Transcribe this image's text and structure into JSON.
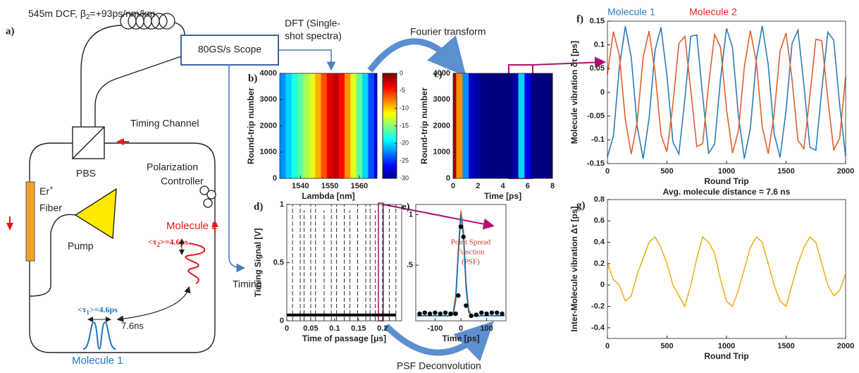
{
  "diagram": {
    "panel": "a)",
    "fiber_label": [
      "545m DCF, β",
      "2",
      "=+93ps/nm/km"
    ],
    "scope": "80GS/s Scope",
    "dft": [
      "DFT (Single-",
      "shot spectra)"
    ],
    "fourier": "Fourier transform",
    "timing_channel": "Timing Channel",
    "pbs": "PBS",
    "controller": [
      "Polarization",
      "Controller"
    ],
    "gain_fiber": [
      "Er",
      "+",
      "Fiber"
    ],
    "pump": "Pump",
    "molecule2": "Molecule 2",
    "tau2": [
      "<τ",
      "2",
      ">=4.6ps"
    ],
    "tau1": [
      "<τ",
      "1",
      ">=4.6ps"
    ],
    "distance": "7.6ns",
    "molecule1": "Molecule 1",
    "timing": "Timing",
    "psf_deconvolution": "PSF Deconvolution"
  },
  "chart_data": [
    {
      "type": "heatmap",
      "panel": "b)",
      "x": [
        1534,
        1536,
        1538,
        1540,
        1542,
        1544,
        1546,
        1548,
        1550,
        1552,
        1554,
        1556,
        1558,
        1560,
        1562,
        1564,
        1566
      ],
      "values": [
        -22,
        -20,
        -18,
        -16,
        -14,
        -12,
        -9,
        -6,
        -3,
        -2,
        -4,
        -8,
        -12,
        -16,
        -20,
        -24,
        -27
      ],
      "xlim": [
        1533,
        1566
      ],
      "xticks": [
        1540,
        1550,
        1560
      ],
      "ylim": [
        0,
        4000
      ],
      "yticks": [
        0,
        1000,
        2000,
        3000,
        4000
      ],
      "xlabel": "Lambda [nm]",
      "ylabel": "Round-trip number",
      "clim": [
        -30,
        0
      ],
      "cticks": [
        0,
        -5,
        -10,
        -15,
        -20,
        -25,
        -30
      ],
      "colormap": "jet",
      "colorbar": true
    },
    {
      "type": "heatmap",
      "panel": "c)",
      "x": [
        0,
        0.5,
        1,
        1.5,
        2,
        2.5,
        3,
        3.5,
        4,
        4.5,
        5,
        5.5,
        6,
        6.5,
        7,
        7.5,
        8
      ],
      "values": [
        -1,
        -8,
        -22,
        -28,
        -29,
        -30,
        -30,
        -30,
        -30,
        -30,
        -29,
        -20,
        -27,
        -30,
        -30,
        -30,
        -30
      ],
      "xlim": [
        0,
        8
      ],
      "xticks": [
        0,
        2,
        4,
        6,
        8
      ],
      "ylim": [
        0,
        4000
      ],
      "yticks": [
        0,
        1000,
        2000,
        3000,
        4000
      ],
      "xlabel": "Time [ps]",
      "ylabel": "Round-trip number",
      "clim": [
        -30,
        0
      ],
      "colormap": "jet",
      "colorbar": false
    },
    {
      "type": "spikes",
      "panel": "d)",
      "x": [
        0.012,
        0.028,
        0.036,
        0.05,
        0.06,
        0.078,
        0.093,
        0.104,
        0.12,
        0.132,
        0.148,
        0.165,
        0.174,
        0.185,
        0.2,
        0.214,
        0.228
      ],
      "values": [
        1,
        1,
        0.95,
        1,
        1,
        0.95,
        1,
        1,
        1,
        0.95,
        1,
        1,
        1,
        0.95,
        1,
        1,
        1
      ],
      "baseline": 0.05,
      "color": "#000000",
      "xlim": [
        0,
        0.24
      ],
      "xticks": [
        0,
        0.05,
        0.1,
        0.15,
        0.2
      ],
      "ylim": [
        0,
        1
      ],
      "yticks": [
        0,
        0.5,
        1
      ],
      "xlabel": "Time of passage [μs]",
      "ylabel": "Timing Signal [V]"
    },
    {
      "type": "line",
      "panel": "e)",
      "series": [
        {
          "color": "#e8621e",
          "style": "line",
          "x": [
            -170,
            -60,
            -50,
            -40,
            -30,
            -20,
            -10,
            0,
            10,
            20,
            30,
            40,
            50,
            60,
            170
          ],
          "values": [
            0,
            0,
            0,
            0,
            0.03,
            0.2,
            0.64,
            1.04,
            0.84,
            0.34,
            0.07,
            0.01,
            0,
            0,
            0
          ]
        },
        {
          "color": "#0072bd",
          "style": "line",
          "x": [
            -170,
            -60,
            -50,
            -40,
            -30,
            -20,
            -10,
            0,
            10,
            20,
            30,
            40,
            50,
            60,
            170
          ],
          "values": [
            0,
            0,
            0,
            0,
            0.01,
            0.15,
            0.6,
            1,
            0.8,
            0.28,
            0.04,
            0,
            0,
            0,
            0
          ]
        },
        {
          "color": "#000000",
          "style": "dots",
          "x": [
            -160,
            -140,
            -120,
            -100,
            -80,
            -60,
            -40,
            -20,
            -10,
            0,
            10,
            20,
            40,
            60,
            80,
            100,
            120,
            140,
            160
          ],
          "values": [
            0.02,
            0.03,
            0.02,
            0.03,
            0.02,
            0.03,
            0.02,
            0.02,
            0.2,
            0.88,
            0.78,
            0.1,
            0,
            0.01,
            0.03,
            0.02,
            0.03,
            0.03,
            0.02
          ]
        }
      ],
      "xlim": [
        -175,
        175
      ],
      "xticks": [
        -100,
        0,
        100
      ],
      "ylim": [
        -0.05,
        1.1
      ],
      "yticks": [
        {
          "value": 0.5,
          "label": ".5"
        },
        1
      ],
      "xlabel": "Time [ps]",
      "annotation": [
        "Point Spread",
        "Function",
        "(PSF)"
      ],
      "annotation_color": "#c0392b"
    },
    {
      "type": "line",
      "panel": "f)",
      "x": [
        0,
        50,
        100,
        150,
        200,
        250,
        300,
        350,
        400,
        450,
        500,
        550,
        600,
        650,
        700,
        750,
        800,
        850,
        900,
        950,
        1000,
        1050,
        1100,
        1150,
        1200,
        1250,
        1300,
        1350,
        1400,
        1450,
        1500,
        1550,
        1600,
        1650,
        1700,
        1750,
        1800,
        1850,
        1900,
        1950,
        2000
      ],
      "series": [
        {
          "name": "Molecule 1",
          "color": "#2b7bb9",
          "label_color": "#2b7bb9",
          "style": "line",
          "values": [
            -0.136,
            -0.092,
            0.053,
            0.139,
            0.074,
            -0.072,
            -0.14,
            -0.055,
            0.089,
            0.137,
            0.035,
            -0.105,
            -0.13,
            -0.014,
            0.118,
            0.121,
            -0.008,
            -0.128,
            -0.109,
            0.029,
            0.135,
            0.094,
            -0.05,
            -0.139,
            -0.077,
            0.069,
            0.14,
            0.058,
            -0.087,
            -0.137,
            -0.038,
            0.103,
            0.131,
            0.016,
            -0.116,
            -0.122,
            0.005,
            0.127,
            0.11,
            -0.026,
            -0.134
          ]
        },
        {
          "name": "Molecule 2",
          "color": "#e0602b",
          "label_color": "#e8211f",
          "style": "line",
          "values": [
            0.038,
            0.128,
            0.078,
            -0.057,
            -0.13,
            -0.062,
            0.074,
            0.129,
            0.043,
            -0.089,
            -0.125,
            -0.024,
            0.103,
            0.118,
            0.004,
            -0.114,
            -0.108,
            0.016,
            0.122,
            0.095,
            -0.035,
            -0.128,
            -0.081,
            0.054,
            0.13,
            0.064,
            -0.072,
            -0.129,
            -0.046,
            0.087,
            0.125,
            0.027,
            -0.101,
            -0.119,
            -0.007,
            0.112,
            0.109,
            -0.013,
            -0.121,
            -0.097,
            0.033
          ]
        }
      ],
      "xlim": [
        0,
        2000
      ],
      "xticks": [
        0,
        500,
        1000,
        1500,
        2000
      ],
      "ylim": [
        -0.15,
        0.15
      ],
      "yticks": [
        -0.15,
        -0.1,
        -0.05,
        0,
        0.05,
        0.1,
        0.15
      ],
      "xlabel": "Round Trip",
      "ylabel": "Molecule vibration δτ [ps]"
    },
    {
      "type": "line",
      "panel": "g)",
      "title": "Avg. molecule distance = 7.6 ns",
      "x": [
        0,
        50,
        100,
        150,
        200,
        250,
        300,
        350,
        400,
        450,
        500,
        550,
        600,
        650,
        700,
        750,
        800,
        850,
        900,
        950,
        1000,
        1050,
        1100,
        1150,
        1200,
        1250,
        1300,
        1350,
        1400,
        1450,
        1500,
        1550,
        1600,
        1650,
        1700,
        1750,
        1800,
        1850,
        1900,
        1950,
        2000
      ],
      "series": [
        {
          "color": "#edb120",
          "style": "line",
          "values": [
            0.2,
            0.05,
            0,
            -0.15,
            -0.1,
            0.1,
            0.25,
            0.4,
            0.45,
            0.35,
            0.2,
            0,
            -0.1,
            -0.2,
            0,
            0.25,
            0.45,
            0.4,
            0.3,
            0.05,
            -0.15,
            -0.2,
            -0.05,
            0.15,
            0.35,
            0.45,
            0.4,
            0.2,
            0,
            -0.15,
            -0.2,
            0,
            0.2,
            0.35,
            0.45,
            0.4,
            0.2,
            0,
            -0.1,
            -0.05,
            0.1
          ]
        }
      ],
      "xlim": [
        0,
        2000
      ],
      "xticks": [
        0,
        500,
        1000,
        1500,
        2000
      ],
      "ylim": [
        -0.5,
        0.8
      ],
      "yticks": [
        -0.4,
        -0.2,
        0,
        0.2,
        0.4,
        0.6,
        0.8
      ],
      "xlabel": "Round Trip",
      "ylabel": "Inter-Molecule vibration Δτ [ps]"
    }
  ]
}
